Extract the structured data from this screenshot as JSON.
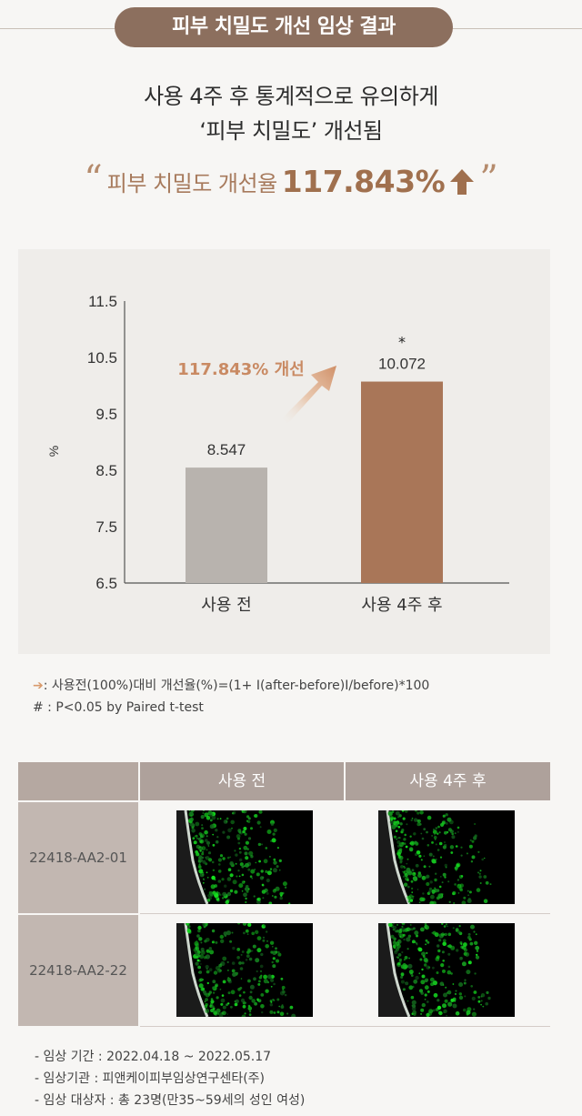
{
  "header": {
    "title": "피부 치밀도 개선 임상 결과"
  },
  "headline": {
    "line1": "사용 4주 후 통계적으로 유의하게",
    "line2": "‘피부 치밀도’ 개선됨"
  },
  "highlight": {
    "open_quote": "“",
    "label": "피부 치밀도 개선율",
    "value": "117.843%",
    "close_quote": "”",
    "arrow_icon": "up-arrow-icon"
  },
  "chart_data": {
    "type": "bar",
    "categories": [
      "사용 전",
      "사용 4주 후"
    ],
    "values": [
      8.547,
      10.072
    ],
    "value_labels": [
      "8.547",
      "10.072"
    ],
    "bar_colors": [
      "#b8b3ae",
      "#a97658"
    ],
    "significance_marker": "*",
    "ylabel": "%",
    "ylim": [
      6.5,
      11.5
    ],
    "yticks": [
      "6.5",
      "7.5",
      "8.5",
      "9.5",
      "10.5",
      "11.5"
    ],
    "annotation": "117.843% 개선",
    "annotation_color": "#c98a63",
    "grid": false
  },
  "notes": {
    "line1": ": 사용전(100%)대비 개선율(%)=(1+ I(after-before)I/before)*100",
    "line2": "# : P<0.05 by Paired t-test"
  },
  "table": {
    "col_before": "사용 전",
    "col_after": "사용 4주 후",
    "rows": [
      {
        "id": "22418-AA2-01"
      },
      {
        "id": "22418-AA2-22"
      }
    ]
  },
  "footer": {
    "period": "-  임상 기간 : 2022.04.18 ~ 2022.05.17",
    "institution": "-  임상기관 : 피앤케이피부임상연구센타(주)",
    "subjects": "-  임상 대상자 : 총 23명(만35~59세의 성인 여성)"
  }
}
